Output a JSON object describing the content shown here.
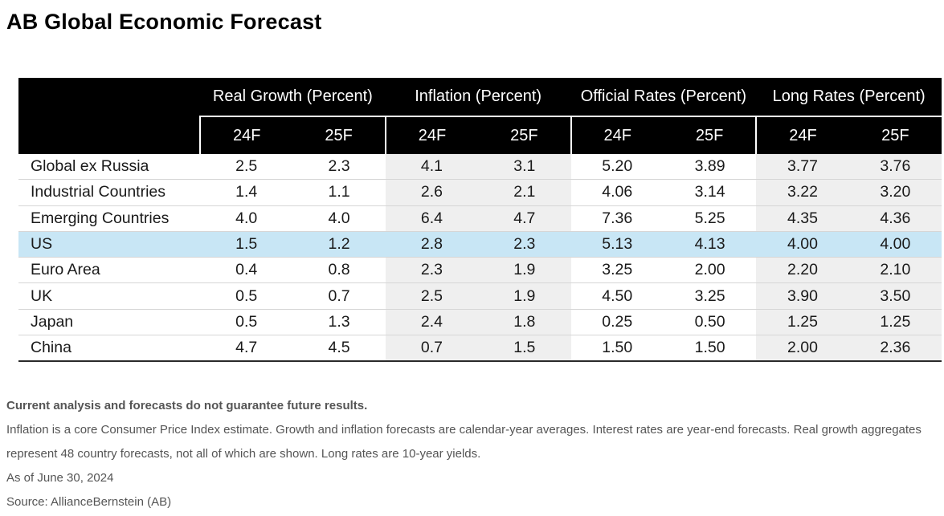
{
  "title": "AB Global Economic Forecast",
  "colors": {
    "header_bg": "#000000",
    "shade": "#efefef",
    "highlight": "#c8e6f5"
  },
  "chart_data": {
    "type": "table",
    "title": "AB Global Economic Forecast",
    "groups": [
      "Real Growth (Percent)",
      "Inflation (Percent)",
      "Official Rates (Percent)",
      "Long Rates (Percent)"
    ],
    "years": [
      "24F",
      "25F",
      "24F",
      "25F",
      "24F",
      "25F",
      "24F",
      "25F"
    ],
    "shaded_groups": [
      1,
      3
    ],
    "highlight_row": "US",
    "rows": [
      {
        "label": "Global ex Russia",
        "values": [
          "2.5",
          "2.3",
          "4.1",
          "3.1",
          "5.20",
          "3.89",
          "3.77",
          "3.76"
        ]
      },
      {
        "label": "Industrial Countries",
        "values": [
          "1.4",
          "1.1",
          "2.6",
          "2.1",
          "4.06",
          "3.14",
          "3.22",
          "3.20"
        ]
      },
      {
        "label": "Emerging Countries",
        "values": [
          "4.0",
          "4.0",
          "6.4",
          "4.7",
          "7.36",
          "5.25",
          "4.35",
          "4.36"
        ]
      },
      {
        "label": "US",
        "values": [
          "1.5",
          "1.2",
          "2.8",
          "2.3",
          "5.13",
          "4.13",
          "4.00",
          "4.00"
        ]
      },
      {
        "label": "Euro Area",
        "values": [
          "0.4",
          "0.8",
          "2.3",
          "1.9",
          "3.25",
          "2.00",
          "2.20",
          "2.10"
        ]
      },
      {
        "label": "UK",
        "values": [
          "0.5",
          "0.7",
          "2.5",
          "1.9",
          "4.50",
          "3.25",
          "3.90",
          "3.50"
        ]
      },
      {
        "label": "Japan",
        "values": [
          "0.5",
          "1.3",
          "2.4",
          "1.8",
          "0.25",
          "0.50",
          "1.25",
          "1.25"
        ]
      },
      {
        "label": "China",
        "values": [
          "4.7",
          "4.5",
          "0.7",
          "1.5",
          "1.50",
          "1.50",
          "2.00",
          "2.36"
        ]
      }
    ]
  },
  "notes": {
    "disclaimer": "Current analysis and forecasts do not guarantee future results.",
    "line1": "Inflation is a core Consumer Price Index estimate. Growth and inflation forecasts are calendar-year averages. Interest rates are year-end forecasts. Real growth aggregates represent 48 country forecasts, not all of which are shown. Long rates are 10-year yields.",
    "date": "As of June 30, 2024",
    "source": "Source: AllianceBernstein (AB)"
  }
}
